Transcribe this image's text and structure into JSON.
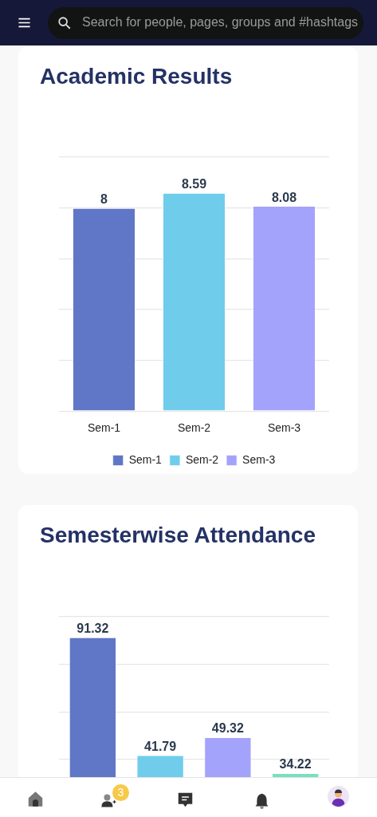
{
  "chart_data": [
    {
      "type": "other",
      "annotations": [
        "Search for people, pages, groups and #hashtags",
        "3"
      ]
    },
    {
      "type": "bar",
      "title": "Academic Results",
      "categories": [
        "Sem-1",
        "Sem-2",
        "Sem-3"
      ],
      "series": [
        {
          "name": "Sem-1",
          "color": "#6076c6",
          "values": [
            8,
            null,
            null
          ]
        },
        {
          "name": "Sem-2",
          "color": "#6fcdeb",
          "values": [
            null,
            8.59,
            null
          ]
        },
        {
          "name": "Sem-3",
          "color": "#a4a3fb",
          "values": [
            null,
            null,
            8.08
          ]
        }
      ],
      "ylim": [
        0,
        10
      ],
      "yticks": [
        {
          "value": 0,
          "label": null
        },
        {
          "value": 2,
          "label": null
        },
        {
          "value": 4,
          "label": null
        },
        {
          "value": 6,
          "label": null
        },
        {
          "value": 8,
          "label": null
        },
        {
          "value": 10,
          "label": null
        }
      ],
      "grid": "y",
      "tick_labels": "x",
      "legend": "bottom",
      "data_labels": true
    },
    {
      "type": "bar",
      "title": "Semesterwise Attendance",
      "categories": [
        null,
        null,
        null,
        null
      ],
      "values": [
        91.32,
        41.79,
        49.32,
        34.22
      ],
      "colors": [
        "#6076c6",
        "#6fcdeb",
        "#a4a3fb",
        "#77e0bf"
      ],
      "ylim": [
        0,
        100
      ],
      "yticks": [
        {
          "value": 40,
          "label": null
        },
        {
          "value": 60,
          "label": null
        },
        {
          "value": 80,
          "label": null
        },
        {
          "value": 100,
          "label": null
        }
      ],
      "grid": "y",
      "tick_labels": false,
      "data_labels": true
    }
  ]
}
